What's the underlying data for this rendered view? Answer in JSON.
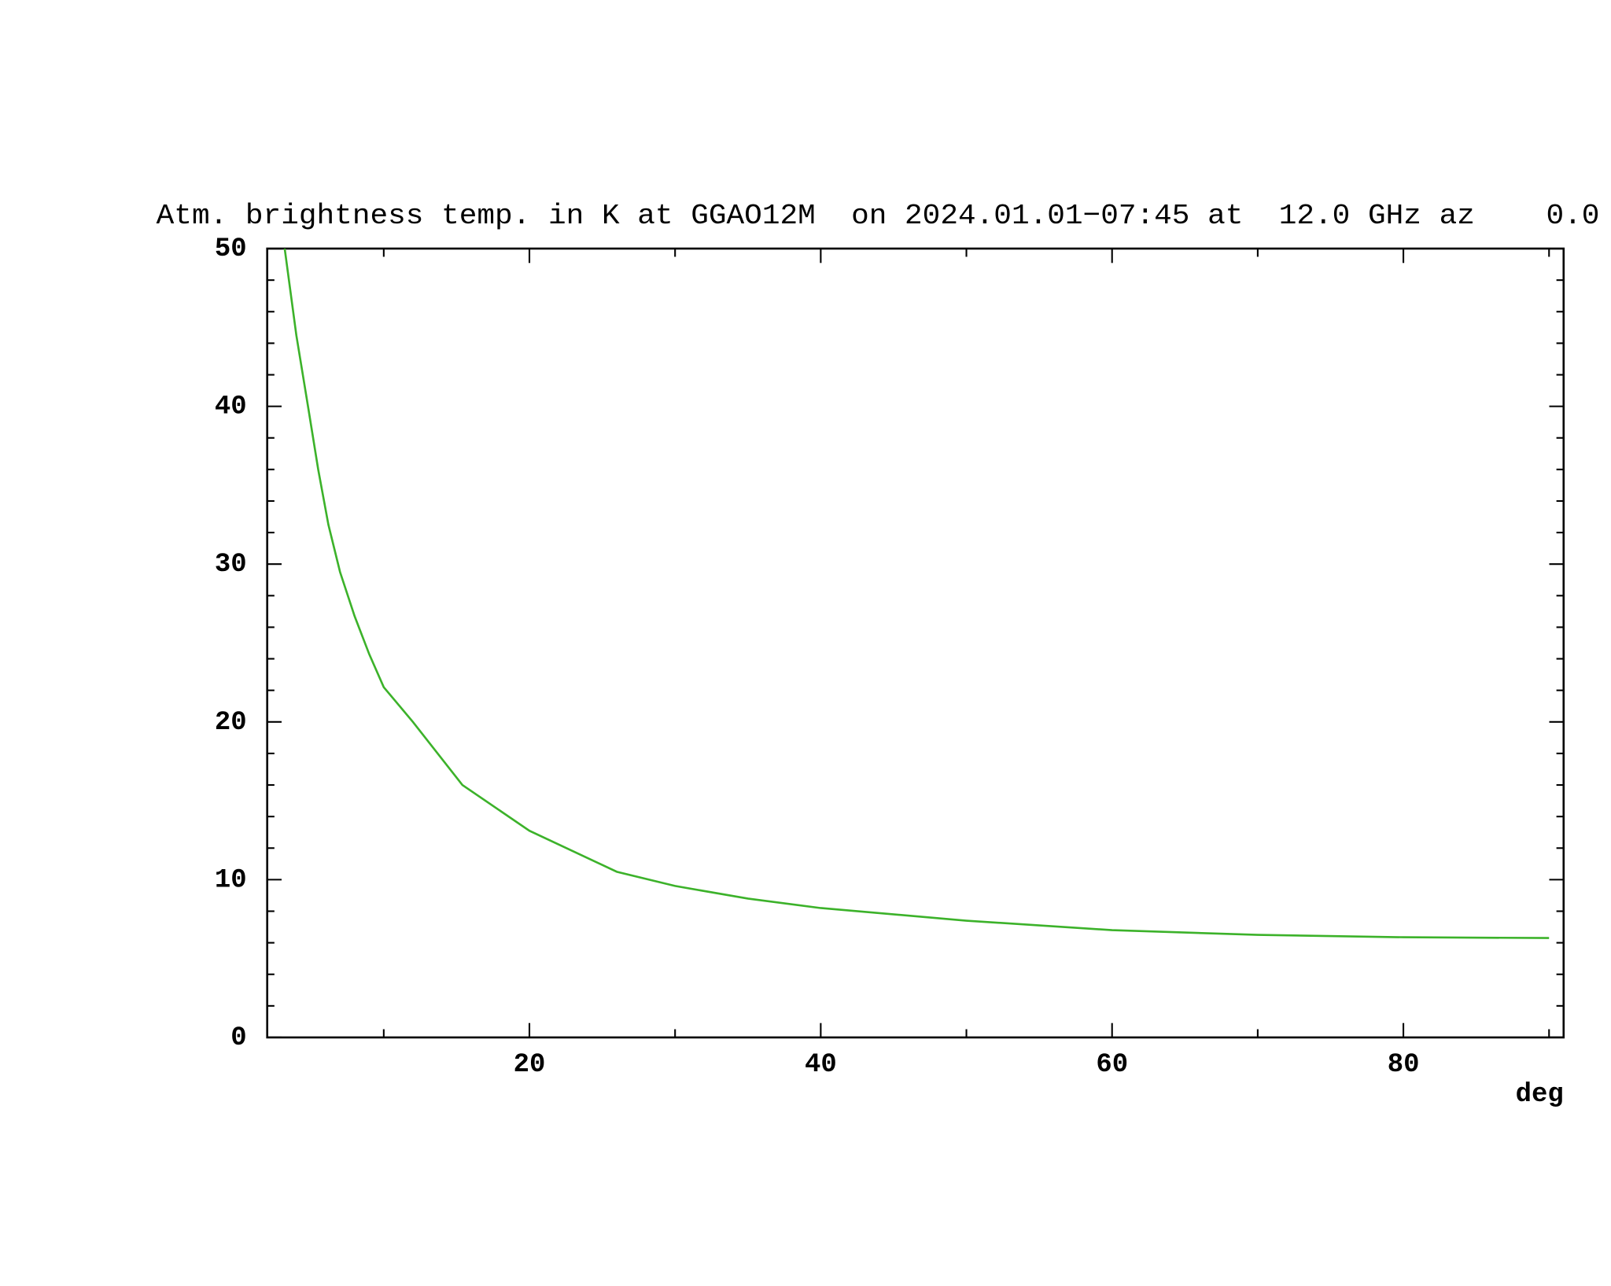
{
  "chart_data": {
    "type": "line",
    "title": "Atm. brightness temp. in K at GGAO12M  on 2024.01.01−07:45 at  12.0 GHz az    0.0",
    "x_label": "deg",
    "x": [
      3.2,
      4,
      4.8,
      5.5,
      6.2,
      7,
      8,
      9,
      10,
      12,
      15.4,
      20,
      26,
      30,
      35,
      40,
      50,
      60,
      70,
      80,
      90
    ],
    "series": [
      {
        "color": "#3cb22a",
        "values": [
          50,
          44.5,
          40,
          36,
          32.5,
          29.5,
          26.7,
          24.3,
          22.2,
          20,
          16,
          13.1,
          10.5,
          9.6,
          8.8,
          8.2,
          7.4,
          6.8,
          6.5,
          6.35,
          6.3
        ]
      }
    ],
    "xlim": [
      2,
      91
    ],
    "ylim": [
      0,
      50
    ],
    "xticks": [
      20,
      40,
      60,
      80
    ],
    "xminorticks": [
      10,
      30,
      50,
      70,
      90
    ],
    "yticks": [
      0,
      10,
      20,
      30,
      40,
      50
    ],
    "yminorticks": [
      2,
      4,
      6,
      8,
      12,
      14,
      16,
      18,
      22,
      24,
      26,
      28,
      32,
      34,
      36,
      38,
      42,
      44,
      46,
      48
    ],
    "grid": false
  }
}
